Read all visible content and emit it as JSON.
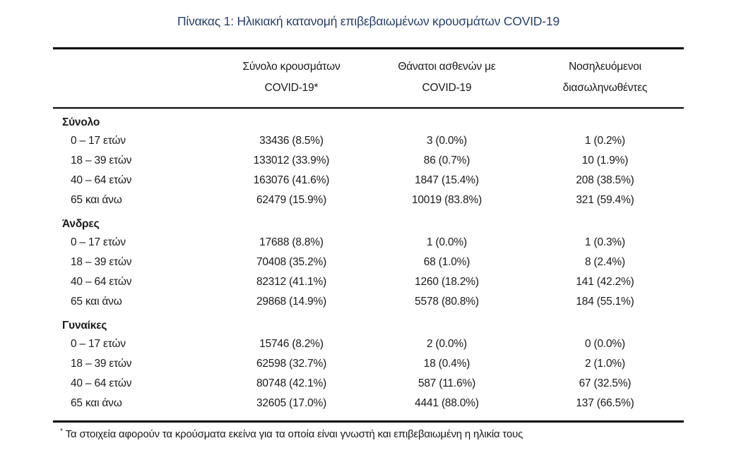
{
  "title": "Πίνακας 1: Ηλικιακή κατανομή επιβεβαιωμένων κρουσμάτων COVID-19",
  "colors": {
    "title": "#28406b",
    "text": "#1a1a1a",
    "rule": "#000000"
  },
  "table": {
    "column_headers": [
      {
        "line1": "Σύνολο κρουσμάτων",
        "line2": "COVID-19*"
      },
      {
        "line1": "Θάνατοι ασθενών με",
        "line2": "COVID-19"
      },
      {
        "line1": "Νοσηλευόμενοι",
        "line2": "διασωληνωθέντες"
      }
    ],
    "sections": [
      {
        "label": "Σύνολο",
        "rows": [
          {
            "label": "0 – 17 ετών",
            "cells": [
              "33436 (8.5%)",
              "3 (0.0%)",
              "1 (0.2%)"
            ]
          },
          {
            "label": "18 – 39 ετών",
            "cells": [
              "133012 (33.9%)",
              "86 (0.7%)",
              "10 (1.9%)"
            ]
          },
          {
            "label": "40 – 64 ετών",
            "cells": [
              "163076 (41.6%)",
              "1847 (15.4%)",
              "208 (38.5%)"
            ]
          },
          {
            "label": "65 και άνω",
            "cells": [
              "62479 (15.9%)",
              "10019 (83.8%)",
              "321 (59.4%)"
            ]
          }
        ]
      },
      {
        "label": "Άνδρες",
        "rows": [
          {
            "label": "0 – 17 ετών",
            "cells": [
              "17688 (8.8%)",
              "1 (0.0%)",
              "1 (0.3%)"
            ]
          },
          {
            "label": "18 – 39 ετών",
            "cells": [
              "70408 (35.2%)",
              "68 (1.0%)",
              "8 (2.4%)"
            ]
          },
          {
            "label": "40 – 64 ετών",
            "cells": [
              "82312 (41.1%)",
              "1260 (18.2%)",
              "141 (42.2%)"
            ]
          },
          {
            "label": "65 και άνω",
            "cells": [
              "29868 (14.9%)",
              "5578 (80.8%)",
              "184 (55.1%)"
            ]
          }
        ]
      },
      {
        "label": "Γυναίκες",
        "rows": [
          {
            "label": "0 – 17 ετών",
            "cells": [
              "15746 (8.2%)",
              "2 (0.0%)",
              "0 (0.0%)"
            ]
          },
          {
            "label": "18 – 39 ετών",
            "cells": [
              "62598 (32.7%)",
              "18 (0.4%)",
              "2 (1.0%)"
            ]
          },
          {
            "label": "40 – 64 ετών",
            "cells": [
              "80748 (42.1%)",
              "587 (11.6%)",
              "67 (32.5%)"
            ]
          },
          {
            "label": "65 και άνω",
            "cells": [
              "32605 (17.0%)",
              "4441 (88.0%)",
              "137 (66.5%)"
            ]
          }
        ]
      }
    ]
  },
  "footnote": {
    "marker": "*",
    "text": "Τα στοιχεία αφορούν τα κρούσματα εκείνα για τα οποία είναι γνωστή και επιβεβαιωμένη η ηλικία τους"
  }
}
